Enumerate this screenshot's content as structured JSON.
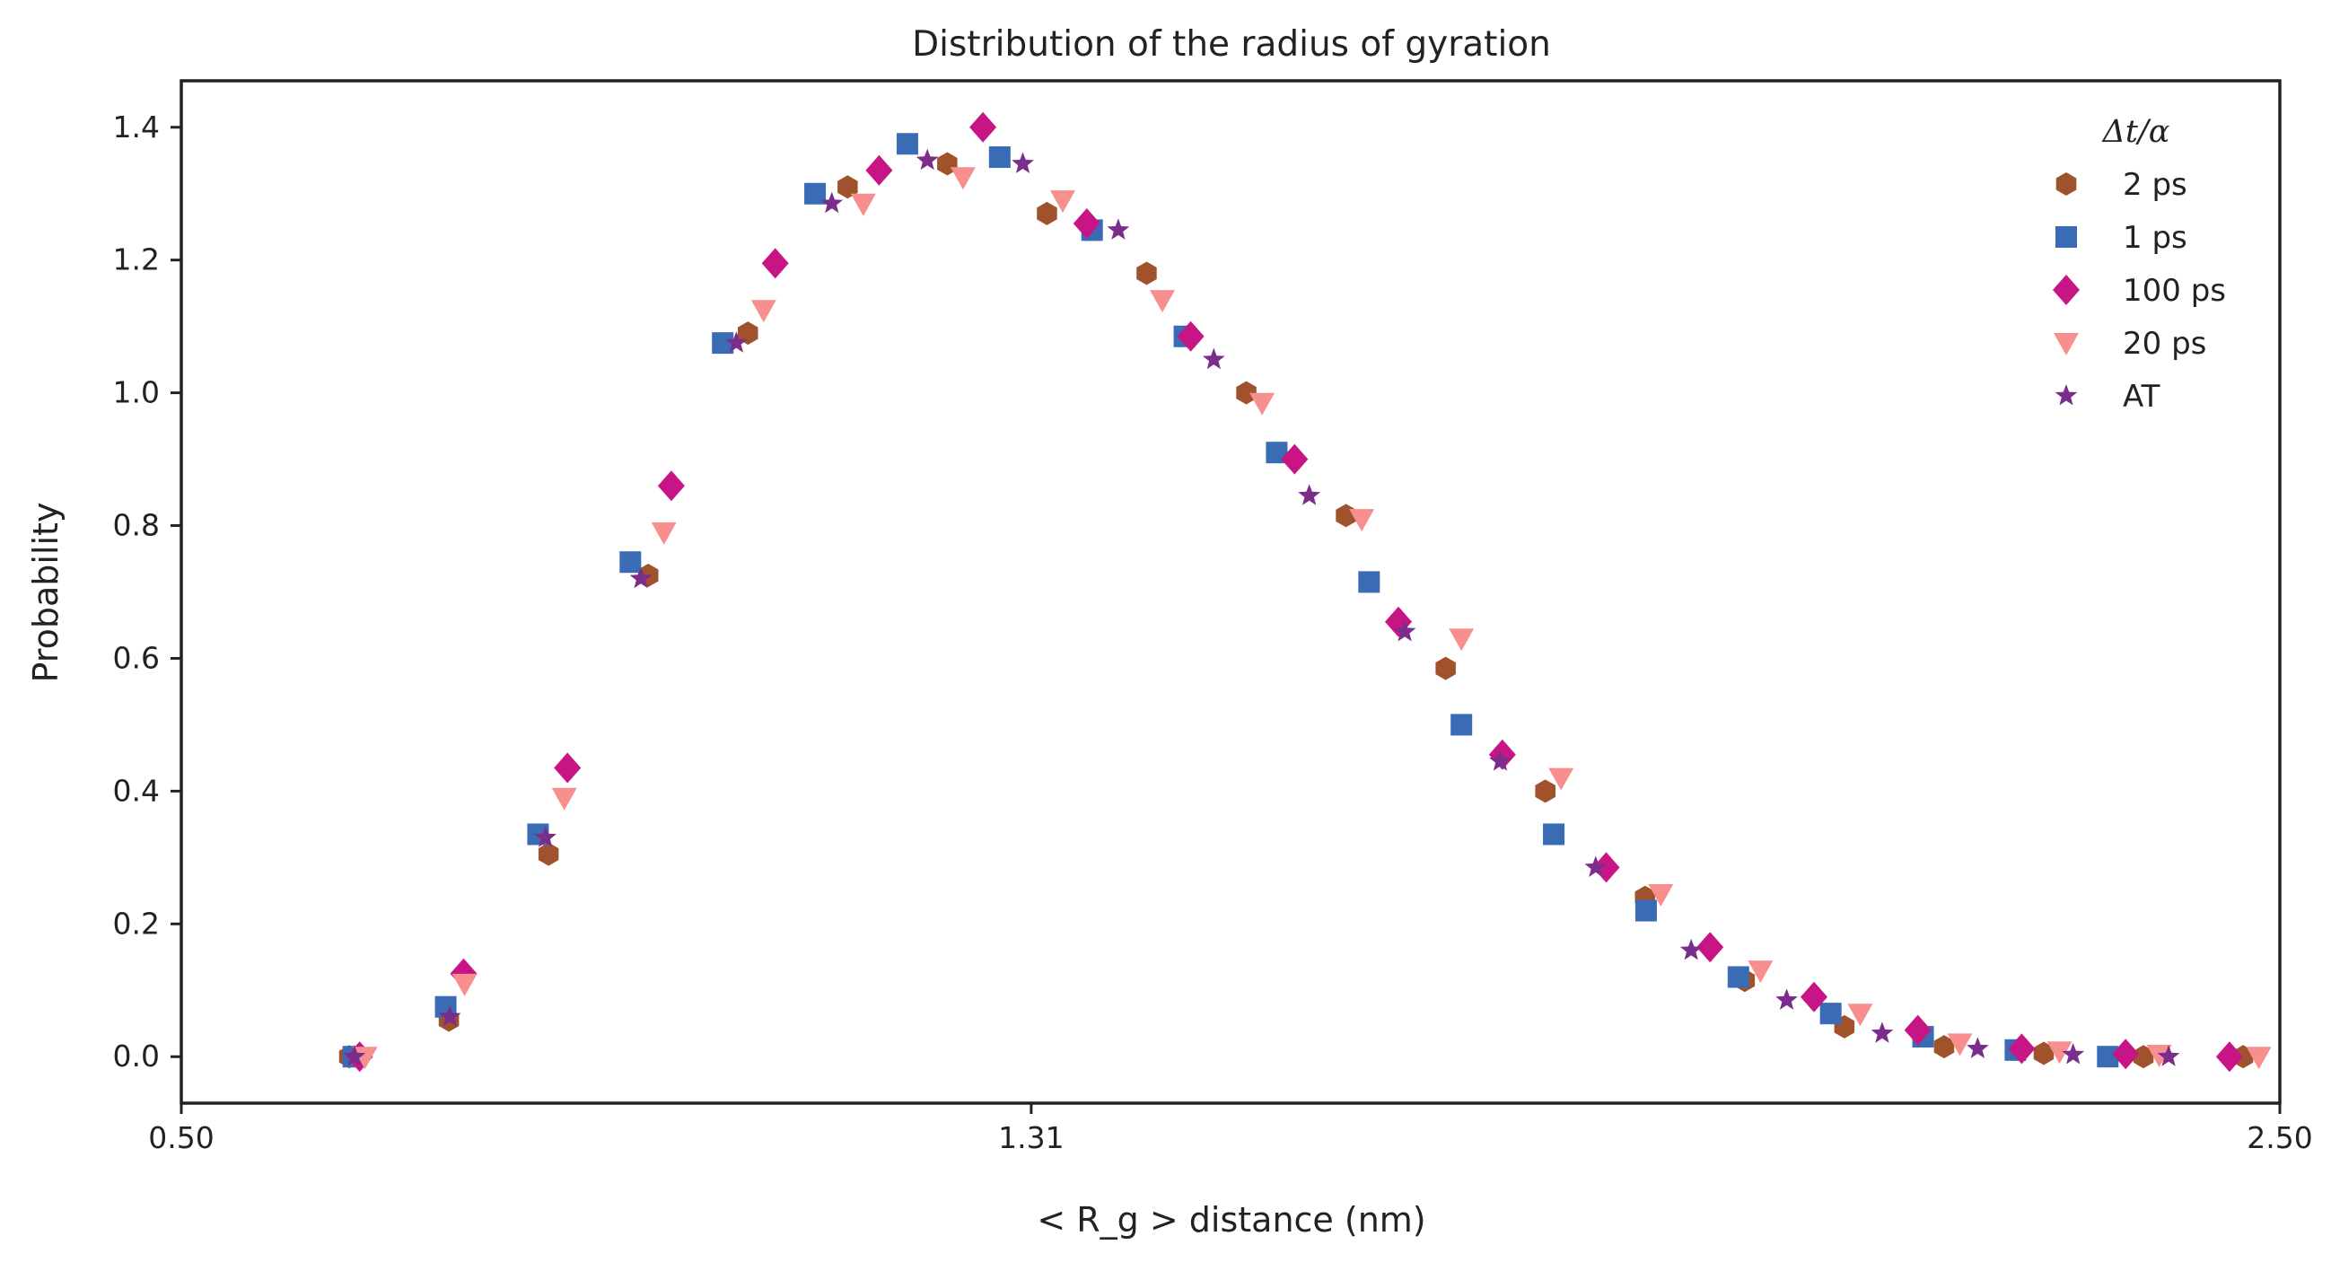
{
  "chart_data": {
    "type": "scatter",
    "title": "Distribution of the radius of gyration",
    "xlabel": "< R_g >  distance (nm)",
    "ylabel": "Probability",
    "xlim": [
      0.5,
      2.5
    ],
    "ylim": [
      -0.07,
      1.47
    ],
    "xticks": [
      "0.50",
      "1.31",
      "2.50"
    ],
    "yticks": [
      "0.0",
      "0.2",
      "0.4",
      "0.6",
      "0.8",
      "1.0",
      "1.2",
      "1.4"
    ],
    "grid": false,
    "legend": {
      "title": "Δt/α",
      "placement": "top-right"
    },
    "series": [
      {
        "name": "2 ps",
        "marker": "hexagon",
        "color": "#a0522d",
        "x": [
          0.66,
          0.755,
          0.85,
          0.945,
          1.04,
          1.135,
          1.23,
          1.325,
          1.42,
          1.515,
          1.61,
          1.705,
          1.8,
          1.895,
          1.99,
          2.085,
          2.18,
          2.275,
          2.37,
          2.465
        ],
        "y": [
          0.0,
          0.055,
          0.305,
          0.725,
          1.09,
          1.31,
          1.345,
          1.27,
          1.18,
          1.0,
          0.815,
          0.585,
          0.4,
          0.24,
          0.115,
          0.045,
          0.015,
          0.005,
          0.0,
          0.0
        ]
      },
      {
        "name": "1 ps",
        "marker": "square",
        "color": "#3a6bb5",
        "x": [
          0.664,
          0.752,
          0.84,
          0.928,
          1.016,
          1.104,
          1.192,
          1.28,
          1.368,
          1.456,
          1.544,
          1.632,
          1.72,
          1.808,
          1.896,
          1.984,
          2.072,
          2.16,
          2.248,
          2.336
        ],
        "y": [
          0.0,
          0.075,
          0.335,
          0.745,
          1.075,
          1.3,
          1.375,
          1.355,
          1.245,
          1.085,
          0.91,
          0.715,
          0.5,
          0.335,
          0.22,
          0.12,
          0.065,
          0.03,
          0.01,
          0.0
        ]
      },
      {
        "name": "100 ps",
        "marker": "diamond",
        "color": "#c71585",
        "x": [
          0.67,
          0.769,
          0.868,
          0.967,
          1.066,
          1.165,
          1.264,
          1.363,
          1.462,
          1.561,
          1.66,
          1.759,
          1.858,
          1.957,
          2.056,
          2.155,
          2.254,
          2.353,
          2.452
        ],
        "y": [
          0.0,
          0.125,
          0.435,
          0.86,
          1.195,
          1.335,
          1.4,
          1.255,
          1.085,
          0.9,
          0.655,
          0.455,
          0.285,
          0.165,
          0.09,
          0.04,
          0.012,
          0.004,
          0.0
        ]
      },
      {
        "name": "20 ps",
        "marker": "triangle-down",
        "color": "#f88f8f",
        "x": [
          0.675,
          0.77,
          0.865,
          0.96,
          1.055,
          1.15,
          1.245,
          1.34,
          1.435,
          1.53,
          1.625,
          1.72,
          1.815,
          1.91,
          2.005,
          2.1,
          2.195,
          2.29,
          2.385,
          2.48
        ],
        "y": [
          0.0,
          0.11,
          0.39,
          0.79,
          1.125,
          1.285,
          1.325,
          1.29,
          1.14,
          0.985,
          0.81,
          0.63,
          0.42,
          0.245,
          0.13,
          0.065,
          0.02,
          0.008,
          0.003,
          0.0
        ]
      },
      {
        "name": "AT",
        "marker": "star",
        "color": "#7b2d8b",
        "x": [
          0.665,
          0.756,
          0.847,
          0.938,
          1.029,
          1.12,
          1.211,
          1.302,
          1.393,
          1.484,
          1.575,
          1.666,
          1.757,
          1.848,
          1.939,
          2.03,
          2.121,
          2.212,
          2.303,
          2.394
        ],
        "y": [
          0.0,
          0.06,
          0.33,
          0.72,
          1.075,
          1.285,
          1.35,
          1.345,
          1.245,
          1.05,
          0.845,
          0.64,
          0.445,
          0.285,
          0.16,
          0.085,
          0.035,
          0.012,
          0.003,
          0.0
        ]
      }
    ]
  }
}
